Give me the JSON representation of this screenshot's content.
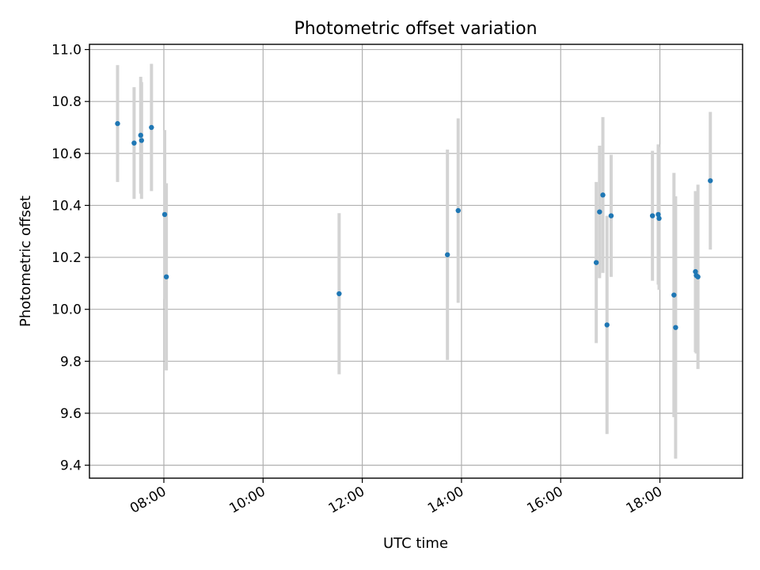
{
  "chart_data": {
    "type": "scatter",
    "title": "Photometric offset variation",
    "xlabel": "UTC time",
    "ylabel": "Photometric offset",
    "xlim": [
      "06:30",
      "19:40"
    ],
    "ylim": [
      9.35,
      11.02
    ],
    "x_ticks": [
      "08:00",
      "10:00",
      "12:00",
      "14:00",
      "16:00",
      "18:00"
    ],
    "y_ticks": [
      9.4,
      9.6,
      9.8,
      10.0,
      10.2,
      10.4,
      10.6,
      10.8,
      11.0
    ],
    "grid": true,
    "colors": {
      "point": "#1f77b4",
      "errorbar": "#d3d3d3",
      "grid": "#b0b0b0"
    },
    "points": [
      {
        "x": "07:04",
        "y": 10.715,
        "err": 0.225
      },
      {
        "x": "07:24",
        "y": 10.64,
        "err": 0.215
      },
      {
        "x": "07:32",
        "y": 10.67,
        "err": 0.225
      },
      {
        "x": "07:33",
        "y": 10.65,
        "err": 0.225
      },
      {
        "x": "07:45",
        "y": 10.7,
        "err": 0.245
      },
      {
        "x": "08:01",
        "y": 10.365,
        "err": 0.325
      },
      {
        "x": "08:03",
        "y": 10.125,
        "err": 0.36
      },
      {
        "x": "11:32",
        "y": 10.06,
        "err": 0.31
      },
      {
        "x": "13:43",
        "y": 10.21,
        "err": 0.405
      },
      {
        "x": "13:56",
        "y": 10.38,
        "err": 0.355
      },
      {
        "x": "16:43",
        "y": 10.18,
        "err": 0.31
      },
      {
        "x": "16:47",
        "y": 10.375,
        "err": 0.255
      },
      {
        "x": "16:51",
        "y": 10.44,
        "err": 0.3
      },
      {
        "x": "16:56",
        "y": 9.94,
        "err": 0.42
      },
      {
        "x": "17:01",
        "y": 10.36,
        "err": 0.235
      },
      {
        "x": "17:51",
        "y": 10.36,
        "err": 0.25
      },
      {
        "x": "17:58",
        "y": 10.365,
        "err": 0.27
      },
      {
        "x": "17:59",
        "y": 10.35,
        "err": 0.275
      },
      {
        "x": "18:17",
        "y": 10.055,
        "err": 0.47
      },
      {
        "x": "18:19",
        "y": 9.93,
        "err": 0.505
      },
      {
        "x": "18:43",
        "y": 10.145,
        "err": 0.31
      },
      {
        "x": "18:44",
        "y": 10.13,
        "err": 0.3
      },
      {
        "x": "18:46",
        "y": 10.125,
        "err": 0.355
      },
      {
        "x": "19:01",
        "y": 10.495,
        "err": 0.265
      }
    ]
  }
}
